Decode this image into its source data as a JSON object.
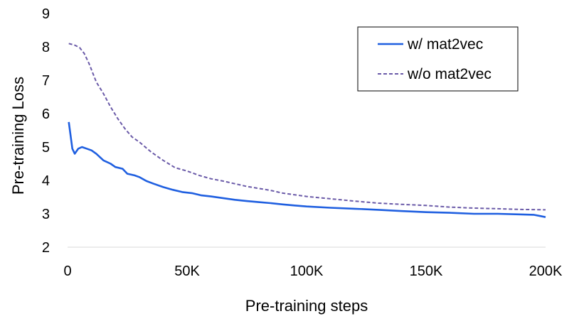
{
  "chart_data": {
    "type": "line",
    "title": "",
    "xlabel": "Pre-training steps",
    "ylabel": "Pre-training Loss",
    "xlim": [
      0,
      200000
    ],
    "ylim": [
      2,
      9
    ],
    "x_ticks": [
      0,
      50000,
      100000,
      150000,
      200000
    ],
    "x_tick_labels": [
      "0",
      "50K",
      "100K",
      "150K",
      "200K"
    ],
    "y_ticks": [
      2,
      3,
      4,
      5,
      6,
      7,
      8,
      9
    ],
    "y_tick_labels": [
      "2",
      "3",
      "4",
      "5",
      "6",
      "7",
      "8",
      "9"
    ],
    "grid": false,
    "legend_position": "top-right",
    "series": [
      {
        "name": "w/ mat2vec",
        "color": "#1f5fe0",
        "dash": "solid",
        "x": [
          500,
          2000,
          3000,
          4500,
          6000,
          8000,
          10000,
          12000,
          15000,
          18000,
          20000,
          23000,
          25000,
          28000,
          30000,
          33000,
          36000,
          40000,
          44000,
          48000,
          52000,
          56000,
          60000,
          65000,
          70000,
          75000,
          80000,
          85000,
          90000,
          95000,
          100000,
          110000,
          120000,
          130000,
          140000,
          150000,
          160000,
          170000,
          180000,
          190000,
          195000,
          198000,
          200000
        ],
        "values": [
          5.75,
          4.95,
          4.8,
          4.95,
          5.0,
          4.95,
          4.9,
          4.8,
          4.6,
          4.5,
          4.4,
          4.35,
          4.2,
          4.15,
          4.1,
          3.98,
          3.9,
          3.8,
          3.72,
          3.65,
          3.62,
          3.55,
          3.52,
          3.47,
          3.42,
          3.38,
          3.35,
          3.32,
          3.28,
          3.25,
          3.22,
          3.18,
          3.15,
          3.12,
          3.08,
          3.05,
          3.03,
          3.0,
          3.0,
          2.98,
          2.97,
          2.93,
          2.9
        ]
      },
      {
        "name": "w/o mat2vec",
        "color": "#6a5aa8",
        "dash": "dashed",
        "x": [
          500,
          3000,
          5000,
          7000,
          9000,
          12000,
          15000,
          18000,
          21000,
          24000,
          27000,
          30000,
          35000,
          40000,
          45000,
          50000,
          55000,
          60000,
          65000,
          70000,
          75000,
          80000,
          85000,
          90000,
          100000,
          110000,
          120000,
          130000,
          140000,
          150000,
          160000,
          170000,
          180000,
          190000,
          200000
        ],
        "values": [
          8.1,
          8.05,
          7.98,
          7.8,
          7.5,
          6.95,
          6.6,
          6.2,
          5.85,
          5.55,
          5.3,
          5.15,
          4.85,
          4.6,
          4.38,
          4.28,
          4.15,
          4.05,
          3.98,
          3.9,
          3.82,
          3.76,
          3.7,
          3.62,
          3.52,
          3.45,
          3.38,
          3.32,
          3.28,
          3.25,
          3.2,
          3.17,
          3.15,
          3.13,
          3.12
        ]
      }
    ]
  }
}
